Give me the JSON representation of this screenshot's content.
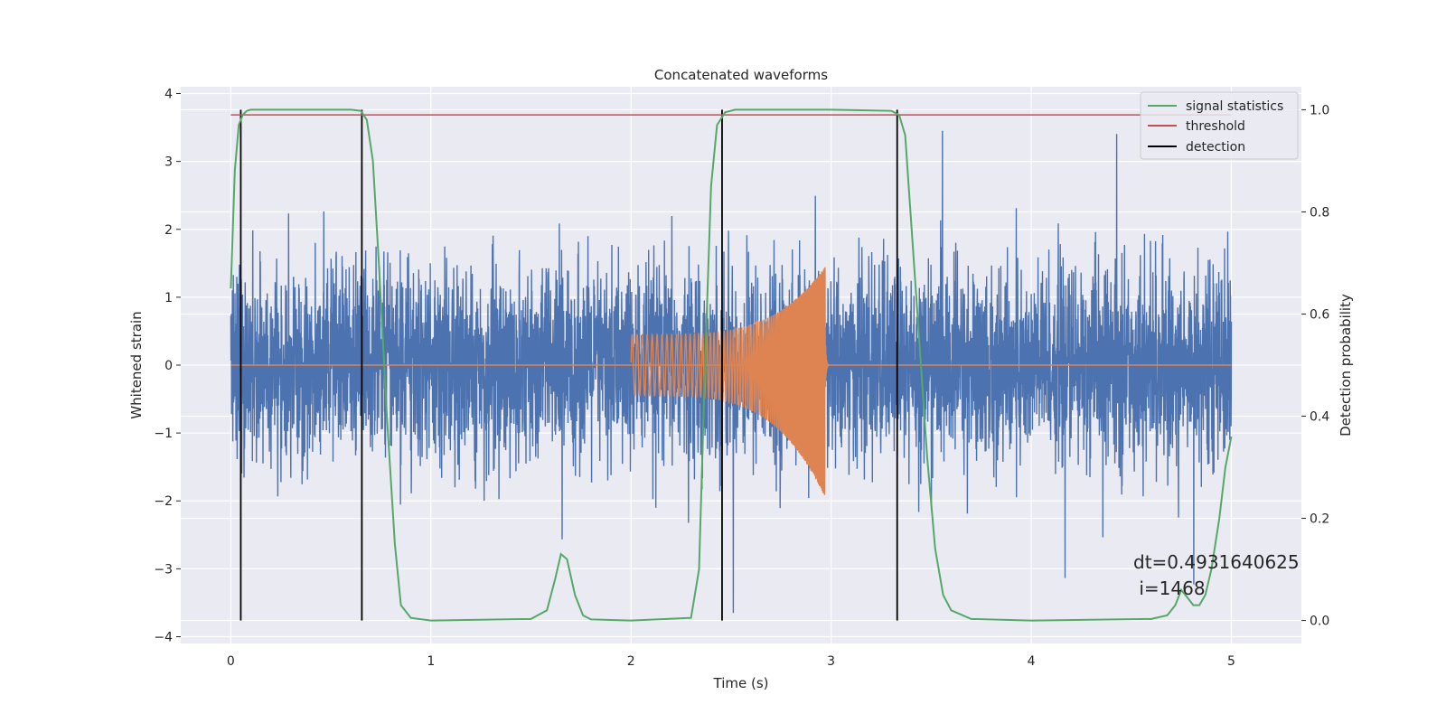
{
  "chart_data": {
    "type": "line",
    "title": "Concatenated waveforms",
    "xlabel": "Time (s)",
    "ylabel": "Whitened strain",
    "y2label": "Detection probability",
    "xlim": [
      -0.25,
      5.35
    ],
    "ylim": [
      -4.1,
      4.1
    ],
    "y2lim": [
      -0.045,
      1.045
    ],
    "xticks": [
      0,
      1,
      2,
      3,
      4,
      5
    ],
    "yticks": [
      -4,
      -3,
      -2,
      -1,
      0,
      1,
      2,
      3,
      4
    ],
    "y2ticks": [
      0.0,
      0.2,
      0.4,
      0.6,
      0.8,
      1.0
    ],
    "xtick_labels": [
      "0",
      "1",
      "2",
      "3",
      "4",
      "5"
    ],
    "ytick_labels": [
      "−4",
      "−3",
      "−2",
      "−1",
      "0",
      "1",
      "2",
      "3",
      "4"
    ],
    "y2tick_labels": [
      "0.0",
      "0.2",
      "0.4",
      "0.6",
      "0.8",
      "1.0"
    ],
    "grid": true,
    "legend_position": "top-right",
    "colors": {
      "background": "#eaeaf2",
      "grid": "#ffffff",
      "noise": "#4c72b0",
      "waveform": "#dd8452",
      "signal_statistics": "#55a868",
      "threshold": "#c44e52",
      "detection": "#000000"
    },
    "series": [
      {
        "name": "",
        "axis": "left",
        "kind": "noise",
        "description_values": {
          "x_range": [
            0,
            5
          ],
          "typical_abs": 0.7,
          "peak_range": [
            -3.65,
            3.45
          ]
        }
      },
      {
        "name": "",
        "axis": "left",
        "kind": "chirp",
        "x_range": [
          2.0,
          2.97
        ],
        "amplitude_start": 0.45,
        "amplitude_peak_pos": 1.45,
        "amplitude_peak_neg": -1.95
      },
      {
        "name": "signal statistics",
        "axis": "right",
        "x": [
          0,
          0.02,
          0.04,
          0.06,
          0.08,
          0.1,
          0.2,
          0.4,
          0.6,
          0.65,
          0.68,
          0.71,
          0.74,
          0.78,
          0.82,
          0.85,
          0.9,
          1.0,
          1.5,
          1.58,
          1.62,
          1.65,
          1.68,
          1.72,
          1.76,
          1.8,
          2.0,
          2.3,
          2.34,
          2.37,
          2.4,
          2.43,
          2.47,
          2.52,
          2.6,
          3.0,
          3.3,
          3.34,
          3.37,
          3.4,
          3.44,
          3.48,
          3.52,
          3.56,
          3.6,
          3.7,
          4.0,
          4.6,
          4.68,
          4.72,
          4.75,
          4.78,
          4.81,
          4.84,
          4.87,
          4.9,
          4.94,
          4.97,
          5.0
        ],
        "values": [
          0.65,
          0.88,
          0.97,
          0.99,
          0.998,
          1.0,
          1.0,
          1.0,
          1.0,
          0.998,
          0.98,
          0.9,
          0.7,
          0.4,
          0.15,
          0.03,
          0.005,
          0.0,
          0.003,
          0.02,
          0.08,
          0.13,
          0.12,
          0.05,
          0.01,
          0.002,
          0.0,
          0.005,
          0.1,
          0.5,
          0.85,
          0.97,
          0.995,
          1.0,
          1.0,
          1.0,
          0.998,
          0.99,
          0.95,
          0.78,
          0.55,
          0.32,
          0.14,
          0.05,
          0.02,
          0.003,
          0.0,
          0.003,
          0.01,
          0.03,
          0.06,
          0.045,
          0.03,
          0.03,
          0.05,
          0.1,
          0.2,
          0.3,
          0.36
        ]
      },
      {
        "name": "threshold",
        "axis": "right",
        "x": [
          0,
          5
        ],
        "values": [
          0.99,
          0.99
        ]
      },
      {
        "name": "detection",
        "axis": "right",
        "kind": "vertical_lines",
        "x": [
          0.05,
          0.655,
          2.455,
          3.33
        ],
        "ymin": 0.0,
        "ymax": 1.0
      }
    ],
    "annotation": {
      "line1": "dt=0.4931640625",
      "line2": " i=1468",
      "x": 4.51,
      "y": -3.15
    }
  }
}
